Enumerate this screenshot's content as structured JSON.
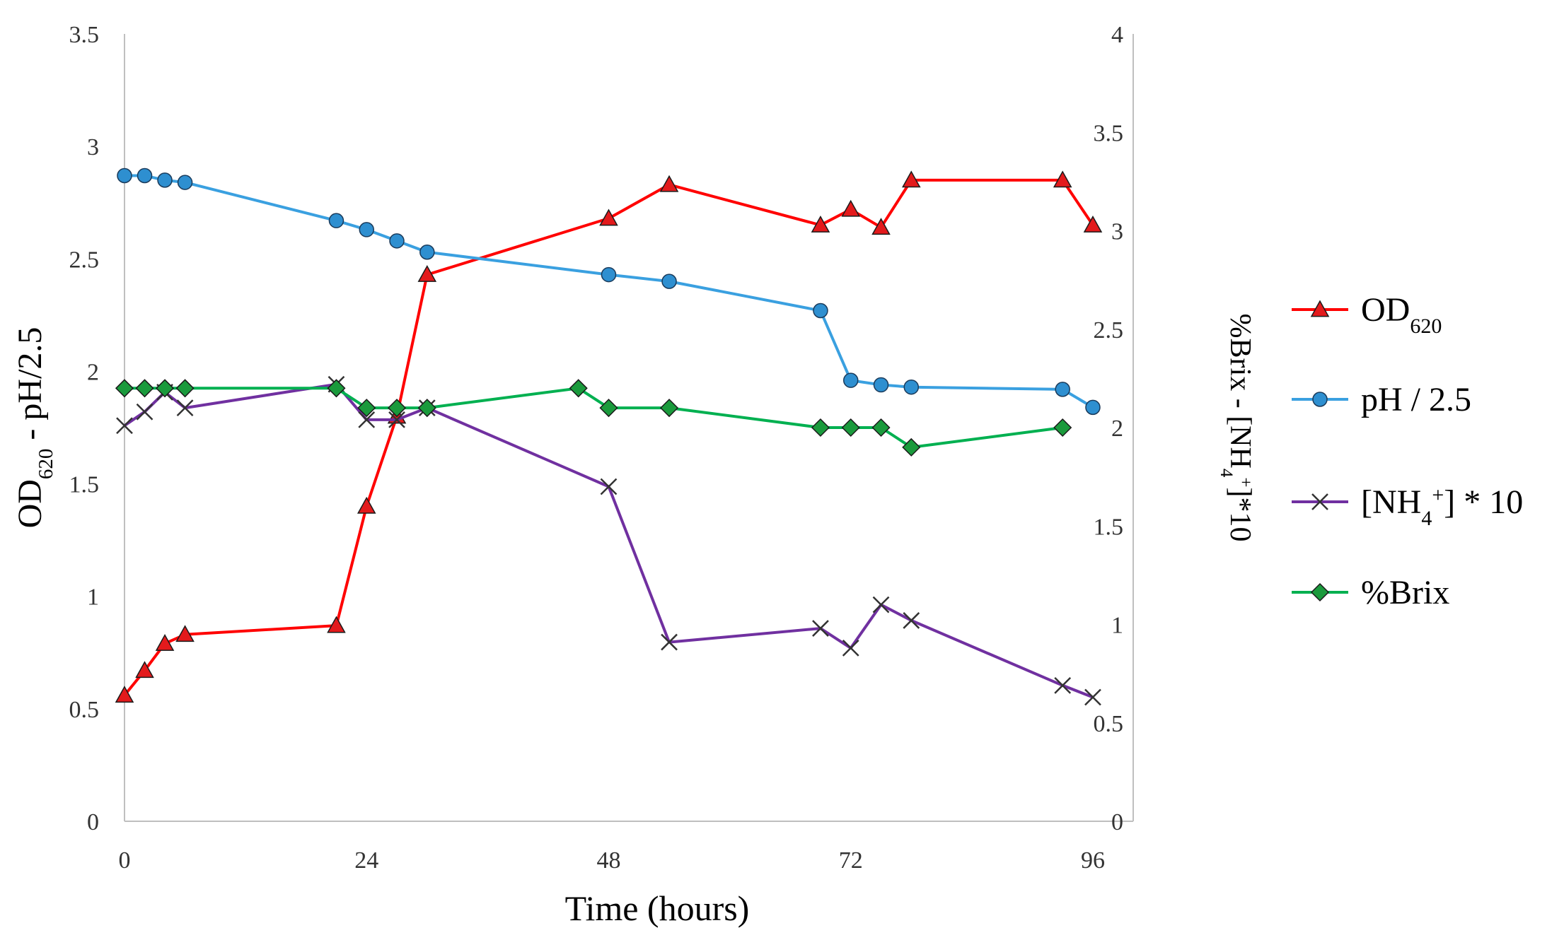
{
  "chart_data": {
    "type": "line",
    "xlabel": "Time (hours)",
    "x_ticks": [
      0,
      24,
      48,
      72,
      96
    ],
    "xlim": [
      0,
      100
    ],
    "left_axis": {
      "label_parts": {
        "pre": "OD",
        "sub": "620",
        "post": " - pH/2.5"
      },
      "ylim": [
        0,
        3.5
      ],
      "ticks": [
        "0",
        "0.5",
        "1",
        "1.5",
        "2",
        "2.5",
        "3",
        "3.5"
      ]
    },
    "right_axis": {
      "label_parts": {
        "pre": "%Brix - [NH",
        "sub": "4",
        "sup": "+",
        "post": "]*10"
      },
      "ylim": [
        0,
        4
      ],
      "ticks": [
        "0",
        "0.5",
        "1",
        "1.5",
        "2",
        "2.5",
        "3",
        "3.5",
        "4"
      ]
    },
    "series": [
      {
        "name": "OD620",
        "legend_parts": {
          "pre": "OD",
          "sub": "620"
        },
        "axis": "left",
        "color": "#ff0000",
        "marker": "triangle",
        "marker_fill": "#e31a1c",
        "x": [
          0,
          2,
          4,
          6,
          21,
          24,
          27,
          30,
          48,
          54,
          69,
          72,
          75,
          78,
          93,
          96
        ],
        "y": [
          0.56,
          0.67,
          0.79,
          0.83,
          0.87,
          1.4,
          1.8,
          2.43,
          2.68,
          2.83,
          2.65,
          2.72,
          2.64,
          2.85,
          2.85,
          2.65
        ]
      },
      {
        "name": "pH / 2.5",
        "legend_parts": {
          "pre": "pH / 2.5"
        },
        "axis": "left",
        "color": "#3aa0e0",
        "marker": "circle",
        "marker_fill": "#2e8fd0",
        "x": [
          0,
          2,
          4,
          6,
          21,
          24,
          27,
          30,
          48,
          54,
          69,
          72,
          75,
          78,
          93,
          96
        ],
        "y": [
          2.87,
          2.87,
          2.85,
          2.84,
          2.67,
          2.63,
          2.58,
          2.53,
          2.43,
          2.4,
          2.27,
          1.96,
          1.94,
          1.93,
          1.92,
          1.84
        ]
      },
      {
        "name": "[NH4+] * 10",
        "legend_parts": {
          "pre": "[NH",
          "sub": "4",
          "sup": "+",
          "post": "] * 10"
        },
        "axis": "right",
        "color": "#7030a0",
        "marker": "x",
        "marker_fill": "#333333",
        "x": [
          0,
          2,
          4,
          6,
          21,
          24,
          27,
          30,
          48,
          54,
          69,
          72,
          75,
          78,
          93,
          96
        ],
        "y": [
          2.01,
          2.08,
          2.18,
          2.1,
          2.22,
          2.04,
          2.04,
          2.1,
          1.7,
          0.91,
          0.98,
          0.88,
          1.1,
          1.02,
          0.69,
          0.63
        ]
      },
      {
        "name": "%Brix",
        "legend_parts": {
          "pre": "%Brix"
        },
        "axis": "right",
        "color": "#00b050",
        "marker": "diamond",
        "marker_fill": "#1a9a3c",
        "x": [
          0,
          2,
          4,
          6,
          21,
          24,
          27,
          30,
          45,
          48,
          54,
          69,
          72,
          75,
          78,
          93
        ],
        "y": [
          2.2,
          2.2,
          2.2,
          2.2,
          2.2,
          2.1,
          2.1,
          2.1,
          2.2,
          2.1,
          2.1,
          2.0,
          2.0,
          2.0,
          1.9,
          2.0
        ]
      }
    ]
  }
}
